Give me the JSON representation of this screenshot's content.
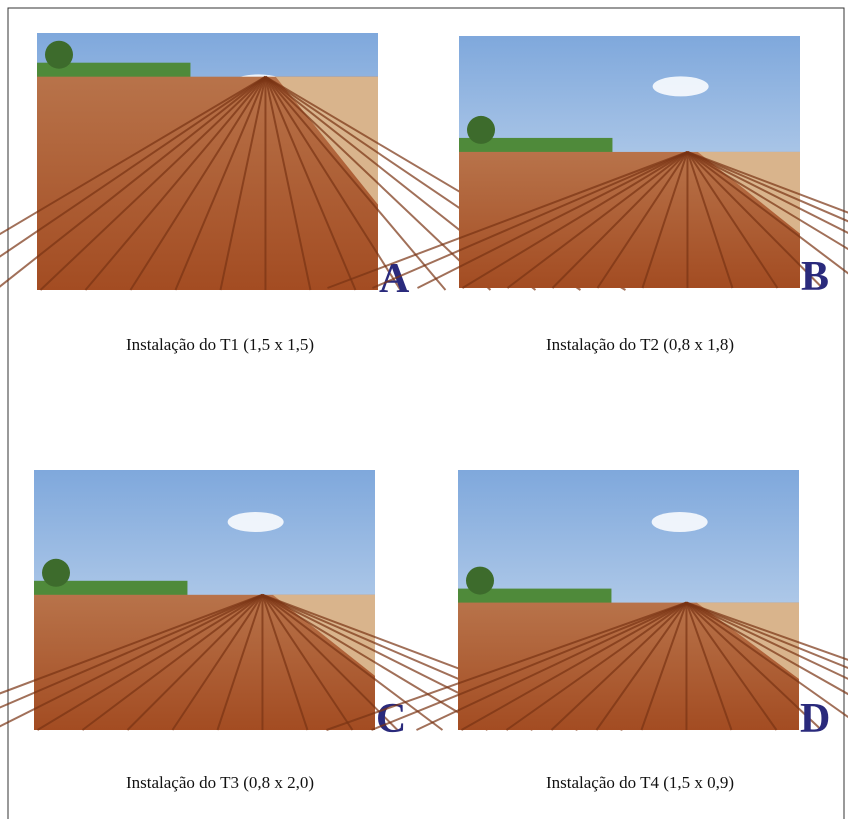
{
  "panels": [
    {
      "label": "A",
      "caption": "Instalação do T1 (1,5 x 1,5)"
    },
    {
      "label": "B",
      "caption": "Instalação do T2 (0,8 x 1,8)"
    },
    {
      "label": "C",
      "caption": "Instalação do T3 (0,8 x 2,0)"
    },
    {
      "label": "D",
      "caption": "Instalação do T4 (1,5 x 0,9)"
    }
  ]
}
